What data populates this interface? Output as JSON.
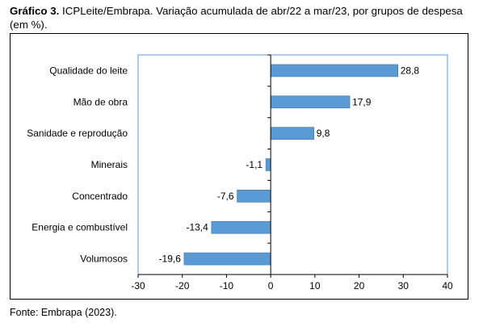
{
  "caption": {
    "prefix": "Gráfico 3.",
    "text": "ICPLeite/Embrapa. Variação acumulada de abr/22 a mar/23, por grupos de despesa (em %)."
  },
  "source": "Fonte: Embrapa (2023).",
  "chart_data": {
    "type": "bar",
    "orientation": "horizontal",
    "title": "",
    "xlabel": "",
    "ylabel": "",
    "categories": [
      "Qualidade do leite",
      "Mão de obra",
      "Sanidade e reprodução",
      "Minerais",
      "Concentrado",
      "Energia e combustível",
      "Volumosos"
    ],
    "values": [
      28.8,
      17.9,
      9.8,
      -1.1,
      -7.6,
      -13.4,
      -19.6
    ],
    "value_labels": [
      "28,8",
      "17,9",
      "9,8",
      "-1,1",
      "-7,6",
      "-13,4",
      "-19,6"
    ],
    "xlim": [
      -30,
      40
    ],
    "xticks": [
      -30,
      -20,
      -10,
      0,
      10,
      20,
      30,
      40
    ],
    "grid": false,
    "bar_color": "#5b9bd5",
    "plot_border_color": "#5b9bd5"
  }
}
